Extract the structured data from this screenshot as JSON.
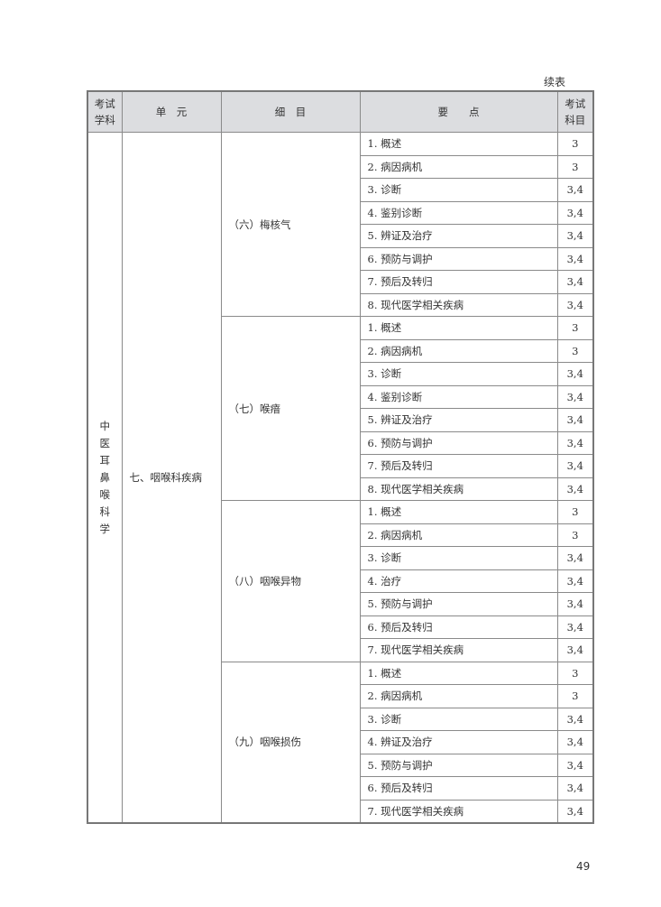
{
  "continued_label": "续表",
  "headers": {
    "subject": "考试学科",
    "unit": "单　元",
    "detail": "细　目",
    "points": "要　　点",
    "exam": "考试科目"
  },
  "subject": "中医耳鼻喉科学",
  "unit": "七、咽喉科疾病",
  "groups": [
    {
      "detail": "（六）梅核气",
      "items": [
        {
          "point": "1. 概述",
          "score": "3"
        },
        {
          "point": "2. 病因病机",
          "score": "3"
        },
        {
          "point": "3. 诊断",
          "score": "3,4"
        },
        {
          "point": "4. 鉴别诊断",
          "score": "3,4"
        },
        {
          "point": "5. 辨证及治疗",
          "score": "3,4"
        },
        {
          "point": "6. 预防与调护",
          "score": "3,4"
        },
        {
          "point": "7. 预后及转归",
          "score": "3,4"
        },
        {
          "point": "8. 现代医学相关疾病",
          "score": "3,4"
        }
      ]
    },
    {
      "detail": "（七）喉瘖",
      "items": [
        {
          "point": "1. 概述",
          "score": "3"
        },
        {
          "point": "2. 病因病机",
          "score": "3"
        },
        {
          "point": "3. 诊断",
          "score": "3,4"
        },
        {
          "point": "4. 鉴别诊断",
          "score": "3,4"
        },
        {
          "point": "5. 辨证及治疗",
          "score": "3,4"
        },
        {
          "point": "6. 预防与调护",
          "score": "3,4"
        },
        {
          "point": "7. 预后及转归",
          "score": "3,4"
        },
        {
          "point": "8. 现代医学相关疾病",
          "score": "3,4"
        }
      ]
    },
    {
      "detail": "（八）咽喉异物",
      "items": [
        {
          "point": "1. 概述",
          "score": "3"
        },
        {
          "point": "2. 病因病机",
          "score": "3"
        },
        {
          "point": "3. 诊断",
          "score": "3,4"
        },
        {
          "point": "4. 治疗",
          "score": "3,4"
        },
        {
          "point": "5. 预防与调护",
          "score": "3,4"
        },
        {
          "point": "6. 预后及转归",
          "score": "3,4"
        },
        {
          "point": "7. 现代医学相关疾病",
          "score": "3,4"
        }
      ]
    },
    {
      "detail": "（九）咽喉损伤",
      "items": [
        {
          "point": "1. 概述",
          "score": "3"
        },
        {
          "point": "2. 病因病机",
          "score": "3"
        },
        {
          "point": "3. 诊断",
          "score": "3,4"
        },
        {
          "point": "4. 辨证及治疗",
          "score": "3,4"
        },
        {
          "point": "5. 预防与调护",
          "score": "3,4"
        },
        {
          "point": "6. 预后及转归",
          "score": "3,4"
        },
        {
          "point": "7. 现代医学相关疾病",
          "score": "3,4"
        }
      ]
    }
  ],
  "page_number": "49"
}
